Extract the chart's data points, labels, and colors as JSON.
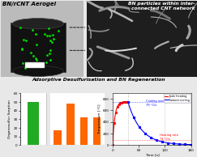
{
  "title_top_left": "BN/rCNT Aerogel",
  "title_top_right": "BN particles within inter-\nconnected CNT network",
  "section_title": "Adsorptive Desulfurisation and BN Regeneration",
  "bar_ylabel": "Organosulfur Sorption",
  "bar1_values": [
    50
  ],
  "bar1_colors": [
    "#22aa22"
  ],
  "bar2_values": [
    17,
    48,
    32,
    32
  ],
  "bar2_colors": [
    "#ff6600",
    "#ff6600",
    "#ff6600",
    "#ff6600"
  ],
  "bar_ylim": [
    0,
    60
  ],
  "bar_yticks": [
    0,
    10,
    20,
    30,
    40,
    50,
    60
  ],
  "line_ylabel": "Temperature [°C]",
  "line_xlabel": "Time [s]",
  "line_ylim": [
    -5,
    900
  ],
  "line_xlim": [
    0,
    180
  ],
  "line_xticks": [
    0,
    60,
    120,
    180
  ],
  "line_yticks": [
    0,
    200,
    400,
    600,
    800
  ],
  "joule_label": "Joule heating",
  "cool_label": "Natural cooling",
  "cool_rate_label": "Cooling rate\n79 °C/s",
  "heat_rate_label": "Heating rate\n74 °C/s"
}
